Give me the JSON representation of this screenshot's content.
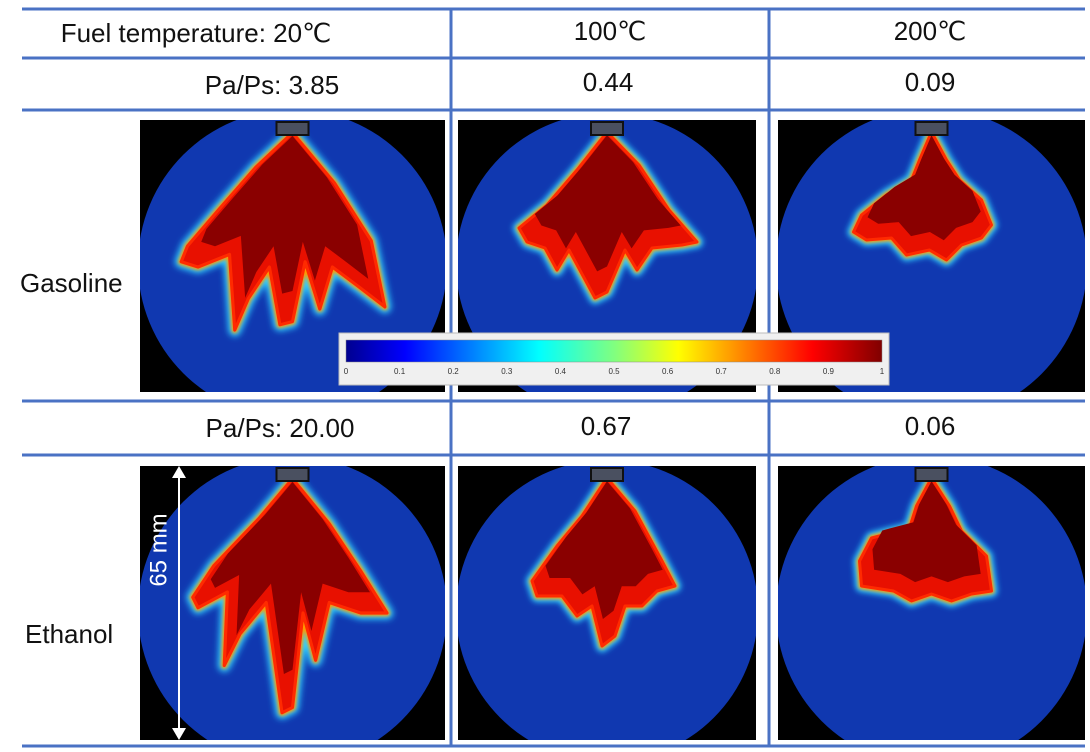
{
  "header": [
    "Fuel temperature: 20℃",
    "100℃",
    "200℃"
  ],
  "gasoline": {
    "label": "Gasoline",
    "ratios": [
      "Pa/Ps: 3.85",
      "0.44",
      "0.09"
    ]
  },
  "ethanol": {
    "label": "Ethanol",
    "ratios": [
      "Pa/Ps: 20.00",
      "0.67",
      "0.06"
    ]
  },
  "scale_label": "65 mm",
  "colorbar": {
    "ticks": [
      0,
      0.1,
      0.2,
      0.3,
      0.4,
      0.5,
      0.6,
      0.7,
      0.8,
      0.9,
      1
    ]
  }
}
